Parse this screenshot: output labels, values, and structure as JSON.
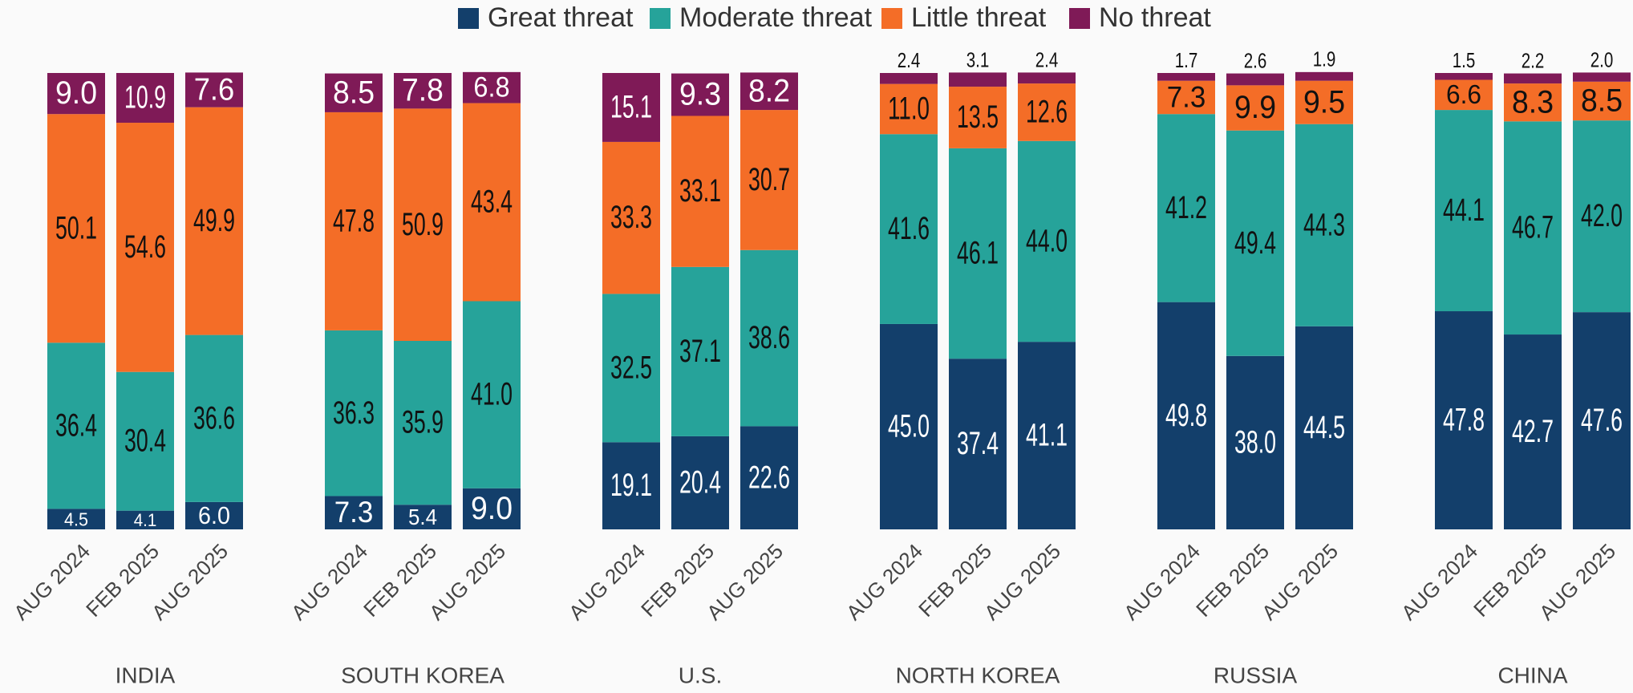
{
  "chart_data": {
    "type": "stacked_bar",
    "groups": [
      "INDIA",
      "SOUTH KOREA",
      "U.S.",
      "NORTH KOREA",
      "RUSSIA",
      "CHINA"
    ],
    "categories": [
      "AUG 2024",
      "FEB 2025",
      "AUG 2025",
      "AUG 2024",
      "FEB 2025",
      "AUG 2025",
      "AUG 2024",
      "FEB 2025",
      "AUG 2025",
      "AUG 2024",
      "FEB 2025",
      "AUG 2025",
      "AUG 2024",
      "FEB 2025",
      "AUG 2025",
      "AUG 2024",
      "FEB 2025",
      "AUG 2025"
    ],
    "ylim": [
      0,
      100
    ],
    "legend": "top",
    "series": [
      {
        "name": "Great threat",
        "color": "#133f6b",
        "values": [
          4.5,
          4.1,
          6.0,
          7.3,
          5.4,
          9.0,
          19.1,
          20.4,
          22.6,
          45.0,
          37.4,
          41.1,
          49.8,
          38.0,
          44.5,
          47.8,
          42.7,
          47.6
        ],
        "value_labels": [
          "4.5",
          "4.1",
          "6.0",
          "7.3",
          "5.4",
          "9.0",
          "19.1",
          "20.4",
          "22.6",
          "45.0",
          "37.4",
          "41.1",
          "49.8",
          "38.0",
          "44.5",
          "47.8",
          "42.7",
          "47.6"
        ]
      },
      {
        "name": "Moderate threat",
        "color": "#26a39a",
        "values": [
          36.4,
          30.4,
          36.6,
          36.3,
          35.9,
          41.0,
          32.5,
          37.1,
          38.6,
          41.6,
          46.1,
          44.0,
          41.2,
          49.4,
          44.3,
          44.1,
          46.7,
          42.0
        ],
        "value_labels": [
          "36.4",
          "30.4",
          "36.6",
          "36.3",
          "35.9",
          "41.0",
          "32.5",
          "37.1",
          "38.6",
          "41.6",
          "46.1",
          "44.0",
          "41.2",
          "49.4",
          "44.3",
          "44.1",
          "46.7",
          "42.0"
        ]
      },
      {
        "name": "Little threat",
        "color": "#f46d27",
        "values": [
          50.1,
          54.6,
          49.9,
          47.8,
          50.9,
          43.4,
          33.3,
          33.1,
          30.7,
          11.0,
          13.5,
          12.6,
          7.3,
          9.9,
          9.5,
          6.6,
          8.3,
          8.5
        ],
        "value_labels": [
          "50.1",
          "54.6",
          "49.9",
          "47.8",
          "50.9",
          "43.4",
          "33.3",
          "33.1",
          "30.7",
          "11.0",
          "13.5",
          "12.6",
          "7.3",
          "9.9",
          "9.5",
          "6.6",
          "8.3",
          "8.5"
        ]
      },
      {
        "name": "No threat",
        "color": "#7f1a57",
        "values": [
          9.0,
          10.9,
          7.6,
          8.5,
          7.8,
          6.8,
          15.1,
          9.3,
          8.2,
          2.4,
          3.1,
          2.4,
          1.7,
          2.6,
          1.9,
          1.5,
          2.2,
          2.0
        ],
        "value_labels": [
          "9.0",
          "10.9",
          "7.6",
          "8.5",
          "7.8",
          "6.8",
          "15.1",
          "9.3",
          "8.2",
          "2.4",
          "3.1",
          "2.4",
          "1.7",
          "2.6",
          "1.9",
          "1.5",
          "2.2",
          "2.0"
        ]
      }
    ]
  }
}
